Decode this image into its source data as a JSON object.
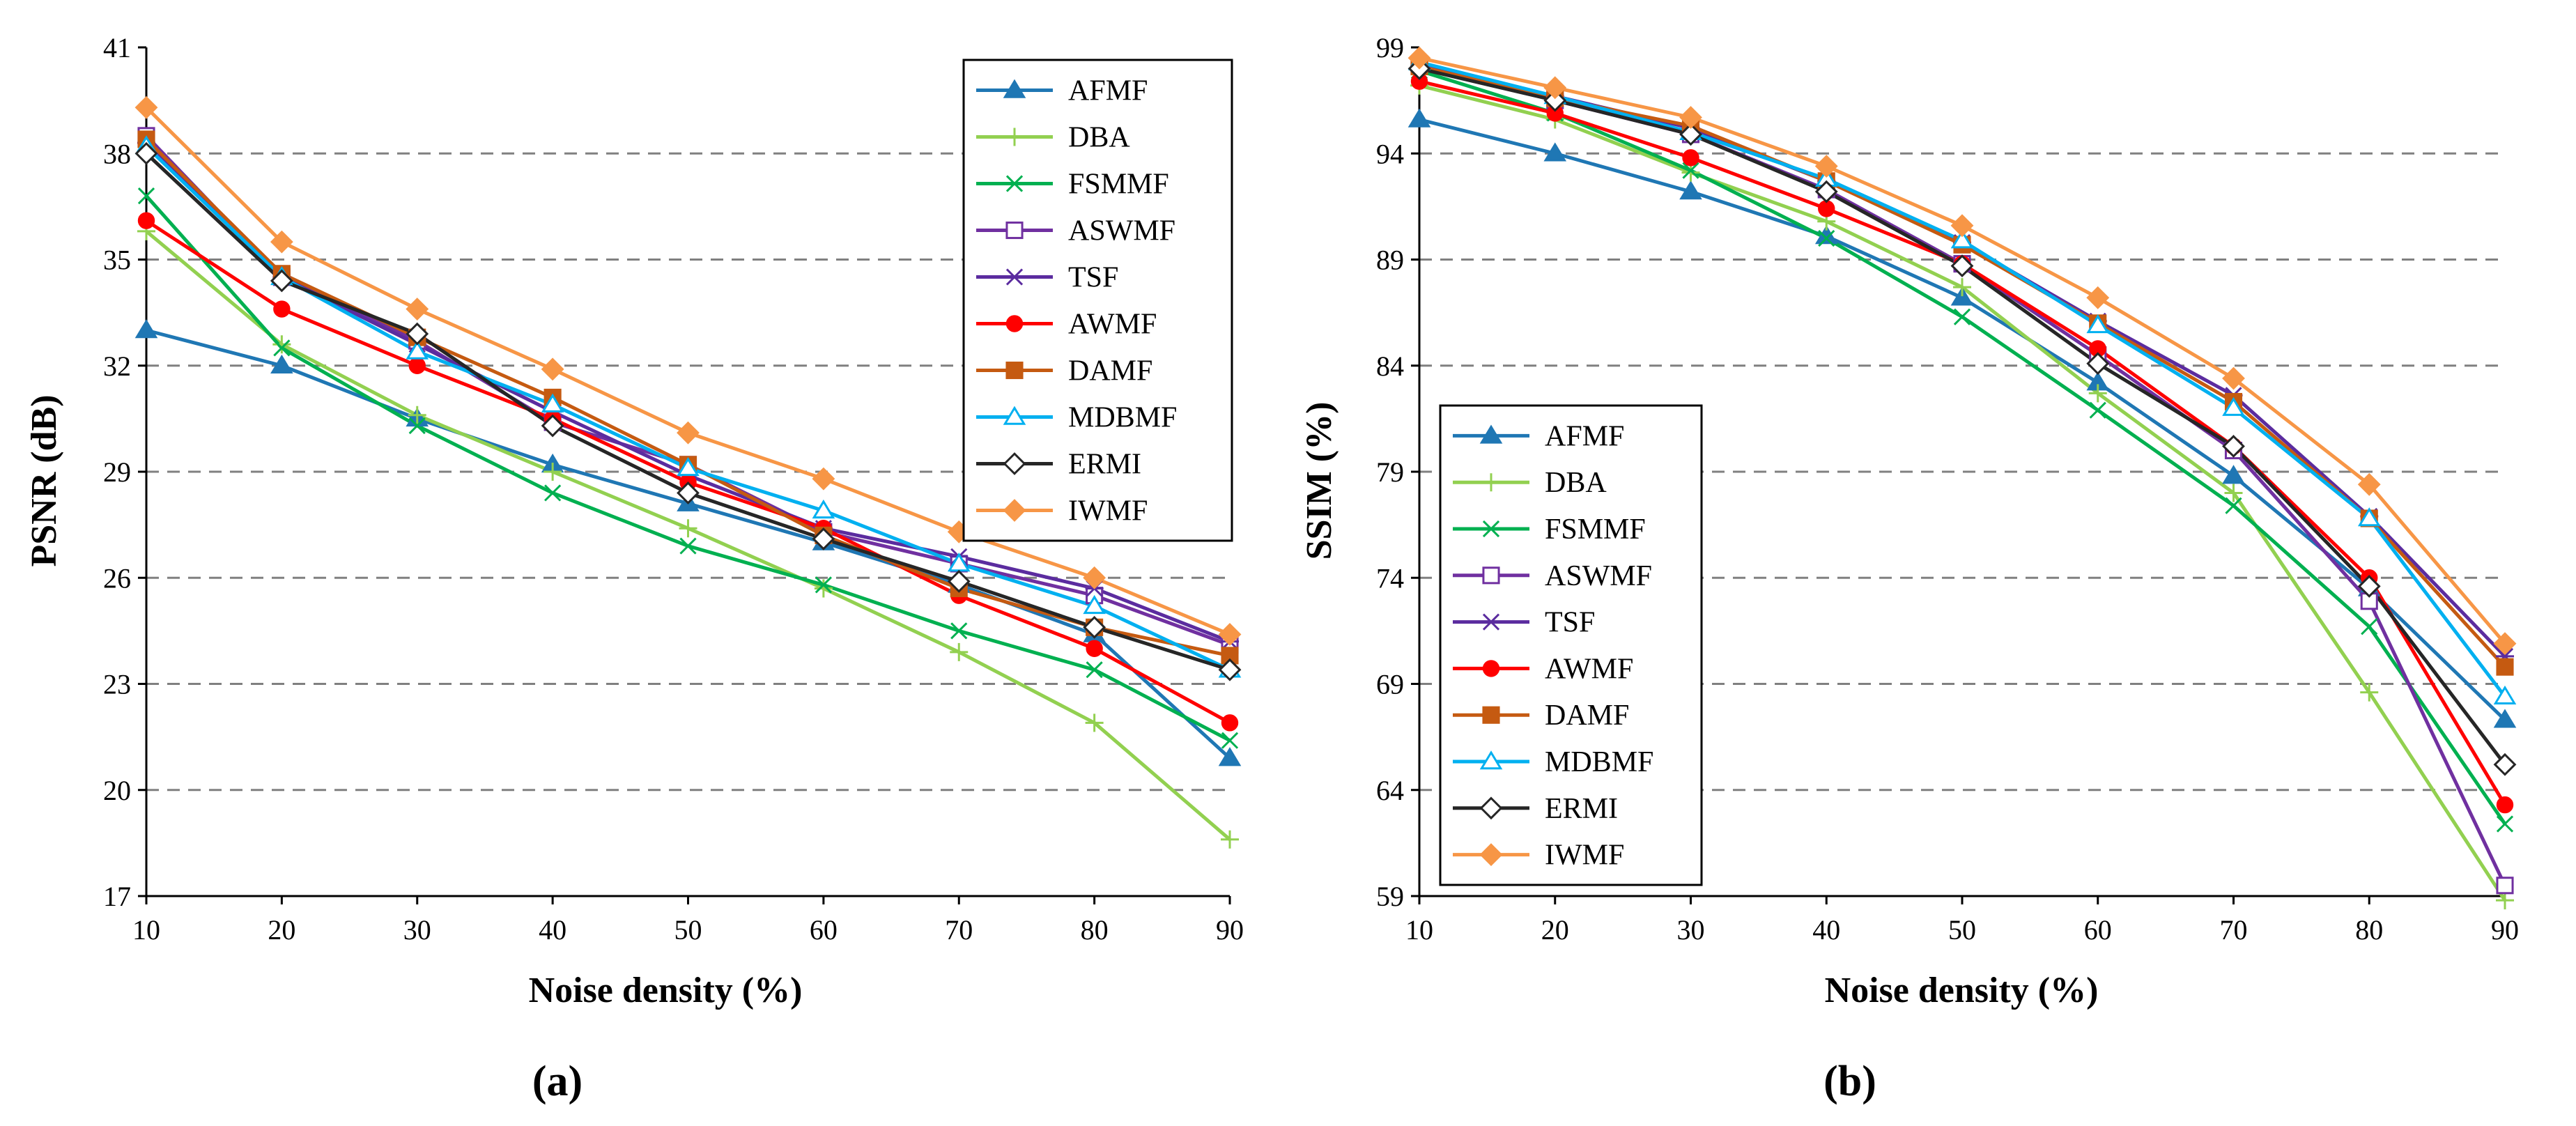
{
  "colors": {
    "AFMF": "#1f77b4",
    "DBA": "#92d050",
    "FSMMF": "#00b050",
    "ASWMF": "#7030a0",
    "TSF": "#5b2c9f",
    "AWMF": "#ff0000",
    "DAMF": "#c55a11",
    "MDBMF": "#00b0f0",
    "ERMI": "#262626",
    "IWMF": "#f79646",
    "grid": "#808080",
    "axis": "#000000"
  },
  "markers": {
    "AFMF": "triangle",
    "DBA": "plus",
    "FSMMF": "x",
    "ASWMF": "square-open",
    "TSF": "star",
    "AWMF": "circle",
    "DAMF": "square",
    "MDBMF": "triangle-open",
    "ERMI": "diamond-open",
    "IWMF": "diamond"
  },
  "chart_data": [
    {
      "type": "line",
      "panel_label": "(a)",
      "title": "",
      "xlabel": "Noise density (%)",
      "ylabel": "PSNR (dB)",
      "x": [
        10,
        20,
        30,
        40,
        50,
        60,
        70,
        80,
        90
      ],
      "xlim": [
        10,
        90
      ],
      "ylim": [
        17,
        41
      ],
      "yticks": [
        17,
        20,
        23,
        26,
        29,
        32,
        35,
        38,
        41
      ],
      "ygrid": [
        20,
        23,
        26,
        29,
        32,
        35,
        38
      ],
      "legend_position": "top-right",
      "series": [
        {
          "name": "AFMF",
          "values": [
            33.0,
            32.0,
            30.5,
            29.2,
            28.1,
            27.0,
            25.8,
            24.4,
            20.9
          ]
        },
        {
          "name": "DBA",
          "values": [
            35.8,
            32.6,
            30.6,
            29.0,
            27.4,
            25.7,
            23.9,
            21.9,
            18.6
          ]
        },
        {
          "name": "FSMMF",
          "values": [
            36.8,
            32.5,
            30.3,
            28.4,
            26.9,
            25.8,
            24.5,
            23.4,
            21.4
          ]
        },
        {
          "name": "ASWMF",
          "values": [
            38.5,
            34.5,
            32.7,
            30.4,
            29.2,
            27.3,
            26.4,
            25.5,
            24.1
          ]
        },
        {
          "name": "TSF",
          "values": [
            38.3,
            34.5,
            32.6,
            30.7,
            28.9,
            27.4,
            26.6,
            25.7,
            24.2
          ]
        },
        {
          "name": "AWMF",
          "values": [
            36.1,
            33.6,
            32.0,
            30.5,
            28.7,
            27.4,
            25.5,
            24.0,
            21.9
          ]
        },
        {
          "name": "DAMF",
          "values": [
            38.4,
            34.6,
            32.8,
            31.1,
            29.2,
            27.2,
            25.7,
            24.6,
            23.8
          ]
        },
        {
          "name": "MDBMF",
          "values": [
            38.2,
            34.5,
            32.4,
            30.9,
            29.1,
            27.9,
            26.4,
            25.2,
            23.4
          ]
        },
        {
          "name": "ERMI",
          "values": [
            38.0,
            34.4,
            32.9,
            30.3,
            28.4,
            27.1,
            25.9,
            24.6,
            23.4
          ]
        },
        {
          "name": "IWMF",
          "values": [
            39.3,
            35.5,
            33.6,
            31.9,
            30.1,
            28.8,
            27.3,
            26.0,
            24.4
          ]
        }
      ]
    },
    {
      "type": "line",
      "panel_label": "(b)",
      "title": "",
      "xlabel": "Noise density (%)",
      "ylabel": "SSIM (%)",
      "x": [
        10,
        20,
        30,
        40,
        50,
        60,
        70,
        80,
        90
      ],
      "xlim": [
        10,
        90
      ],
      "ylim": [
        59,
        99
      ],
      "yticks": [
        59,
        64,
        69,
        74,
        79,
        84,
        89,
        94,
        99
      ],
      "ygrid": [
        64,
        69,
        74,
        79,
        84,
        89,
        94
      ],
      "legend_position": "bottom-left",
      "series": [
        {
          "name": "AFMF",
          "values": [
            95.6,
            94.0,
            92.2,
            90.1,
            87.2,
            83.2,
            78.8,
            73.5,
            67.3
          ]
        },
        {
          "name": "DBA",
          "values": [
            97.2,
            95.6,
            93.1,
            90.8,
            87.7,
            82.7,
            78.0,
            68.6,
            58.8
          ]
        },
        {
          "name": "FSMMF",
          "values": [
            97.9,
            95.9,
            93.2,
            90.0,
            86.3,
            81.9,
            77.4,
            71.7,
            62.4
          ]
        },
        {
          "name": "ASWMF",
          "values": [
            98.2,
            96.5,
            94.9,
            92.3,
            88.8,
            84.5,
            80.0,
            72.9,
            59.5
          ]
        },
        {
          "name": "TSF",
          "values": [
            98.1,
            96.7,
            95.2,
            92.7,
            89.8,
            86.1,
            82.6,
            76.9,
            70.3
          ]
        },
        {
          "name": "AWMF",
          "values": [
            97.4,
            95.9,
            93.8,
            91.4,
            88.8,
            84.8,
            80.2,
            74.0,
            63.3
          ]
        },
        {
          "name": "DAMF",
          "values": [
            98.1,
            96.6,
            95.3,
            92.7,
            89.7,
            86.0,
            82.3,
            76.8,
            69.8
          ]
        },
        {
          "name": "MDBMF",
          "values": [
            98.3,
            96.7,
            95.0,
            92.8,
            89.9,
            85.9,
            82.0,
            76.8,
            68.4
          ]
        },
        {
          "name": "ERMI",
          "values": [
            98.0,
            96.5,
            94.9,
            92.2,
            88.7,
            84.1,
            80.2,
            73.6,
            65.2
          ]
        },
        {
          "name": "IWMF",
          "values": [
            98.5,
            97.1,
            95.7,
            93.4,
            90.6,
            87.2,
            83.4,
            78.4,
            70.9
          ]
        }
      ]
    }
  ]
}
